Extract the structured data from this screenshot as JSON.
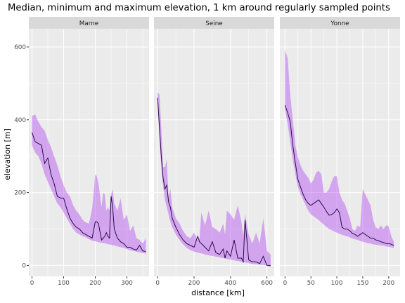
{
  "chart_data": {
    "type": "area",
    "title": "Median, minimum and maximum elevation, 1 km around regularly sampled points",
    "xlabel": "distance [km]",
    "ylabel": "elevation [m]",
    "ylim": [
      -30,
      650
    ],
    "yticks": [
      0,
      200,
      400,
      600
    ],
    "grid": true,
    "legend": "none",
    "colors": {
      "ribbon": "#a020f0",
      "ribbon_opacity": 0.35,
      "line": "#2d0a4a",
      "panel_bg": "#ebebeb",
      "strip_bg": "#d9d9d9",
      "grid": "#ffffff"
    },
    "panels": [
      {
        "name": "Marne",
        "xlim": [
          -10,
          370
        ],
        "xticks": [
          0,
          100,
          200,
          300
        ],
        "x": [
          0,
          10,
          20,
          30,
          40,
          50,
          60,
          70,
          80,
          90,
          100,
          110,
          120,
          130,
          140,
          150,
          160,
          170,
          180,
          190,
          200,
          205,
          210,
          220,
          225,
          230,
          235,
          240,
          245,
          250,
          255,
          260,
          270,
          280,
          290,
          300,
          310,
          320,
          330,
          340,
          350,
          360
        ],
        "median": [
          365,
          340,
          335,
          330,
          280,
          295,
          250,
          225,
          190,
          185,
          185,
          155,
          130,
          115,
          105,
          100,
          90,
          85,
          80,
          75,
          120,
          120,
          115,
          70,
          75,
          80,
          90,
          80,
          75,
          190,
          160,
          100,
          75,
          65,
          60,
          50,
          50,
          45,
          42,
          55,
          40,
          38
        ],
        "min": [
          330,
          310,
          300,
          280,
          250,
          230,
          210,
          190,
          170,
          160,
          145,
          130,
          115,
          100,
          90,
          85,
          80,
          77,
          72,
          68,
          66,
          65,
          64,
          62,
          62,
          61,
          60,
          58,
          58,
          57,
          55,
          55,
          52,
          50,
          48,
          45,
          42,
          40,
          38,
          36,
          34,
          32
        ],
        "max": [
          410,
          415,
          395,
          380,
          370,
          345,
          325,
          300,
          275,
          245,
          220,
          200,
          190,
          165,
          150,
          140,
          125,
          118,
          115,
          155,
          250,
          245,
          225,
          160,
          200,
          195,
          150,
          160,
          150,
          195,
          210,
          170,
          150,
          185,
          125,
          140,
          95,
          110,
          75,
          70,
          60,
          75
        ]
      },
      {
        "name": "Seine",
        "xlim": [
          -20,
          640
        ],
        "xticks": [
          0,
          200,
          400,
          600
        ],
        "x": [
          0,
          10,
          20,
          30,
          40,
          50,
          60,
          70,
          80,
          100,
          120,
          140,
          160,
          180,
          200,
          220,
          230,
          240,
          260,
          280,
          300,
          320,
          340,
          360,
          370,
          380,
          400,
          420,
          440,
          460,
          470,
          480,
          500,
          520,
          540,
          560,
          580,
          600,
          620
        ],
        "median": [
          460,
          380,
          300,
          240,
          210,
          220,
          175,
          160,
          130,
          105,
          85,
          70,
          60,
          55,
          50,
          80,
          65,
          60,
          50,
          40,
          65,
          35,
          30,
          45,
          20,
          40,
          25,
          70,
          20,
          20,
          10,
          125,
          15,
          10,
          10,
          5,
          25,
          0,
          0
        ],
        "min": [
          440,
          350,
          275,
          220,
          180,
          160,
          140,
          120,
          105,
          85,
          70,
          58,
          48,
          42,
          38,
          35,
          34,
          33,
          30,
          28,
          26,
          24,
          22,
          20,
          19,
          18,
          16,
          14,
          12,
          10,
          9,
          8,
          6,
          4,
          3,
          2,
          1,
          0,
          -5
        ],
        "max": [
          475,
          470,
          380,
          270,
          270,
          290,
          190,
          210,
          160,
          130,
          115,
          95,
          80,
          75,
          90,
          70,
          75,
          145,
          110,
          150,
          105,
          100,
          90,
          115,
          85,
          150,
          140,
          125,
          165,
          120,
          80,
          140,
          85,
          60,
          90,
          60,
          130,
          40,
          30
        ]
      },
      {
        "name": "Yonne",
        "xlim": [
          -10,
          222
        ],
        "xticks": [
          0,
          50,
          100,
          150,
          200
        ],
        "x": [
          0,
          5,
          10,
          15,
          20,
          25,
          30,
          35,
          40,
          45,
          50,
          55,
          60,
          65,
          70,
          75,
          80,
          85,
          90,
          95,
          100,
          105,
          110,
          115,
          120,
          125,
          130,
          135,
          140,
          145,
          150,
          155,
          160,
          165,
          170,
          175,
          180,
          185,
          190,
          195,
          200,
          205,
          210
        ],
        "median": [
          440,
          420,
          395,
          330,
          280,
          235,
          215,
          195,
          180,
          170,
          165,
          170,
          175,
          180,
          170,
          160,
          148,
          138,
          140,
          145,
          155,
          145,
          105,
          100,
          100,
          95,
          88,
          85,
          80,
          85,
          90,
          85,
          80,
          75,
          75,
          70,
          68,
          65,
          63,
          60,
          60,
          58,
          55
        ],
        "min": [
          425,
          390,
          340,
          290,
          250,
          215,
          195,
          180,
          165,
          150,
          140,
          135,
          130,
          125,
          118,
          112,
          106,
          100,
          97,
          93,
          90,
          87,
          84,
          82,
          80,
          77,
          74,
          72,
          70,
          67,
          65,
          63,
          61,
          60,
          58,
          57,
          56,
          55,
          54,
          52,
          51,
          50,
          48
        ],
        "max": [
          590,
          570,
          470,
          400,
          330,
          295,
          275,
          260,
          250,
          240,
          225,
          235,
          255,
          260,
          250,
          200,
          200,
          210,
          230,
          245,
          245,
          200,
          180,
          170,
          150,
          130,
          100,
          95,
          110,
          105,
          210,
          195,
          180,
          165,
          125,
          105,
          100,
          110,
          100,
          110,
          108,
          80,
          65
        ]
      }
    ]
  }
}
